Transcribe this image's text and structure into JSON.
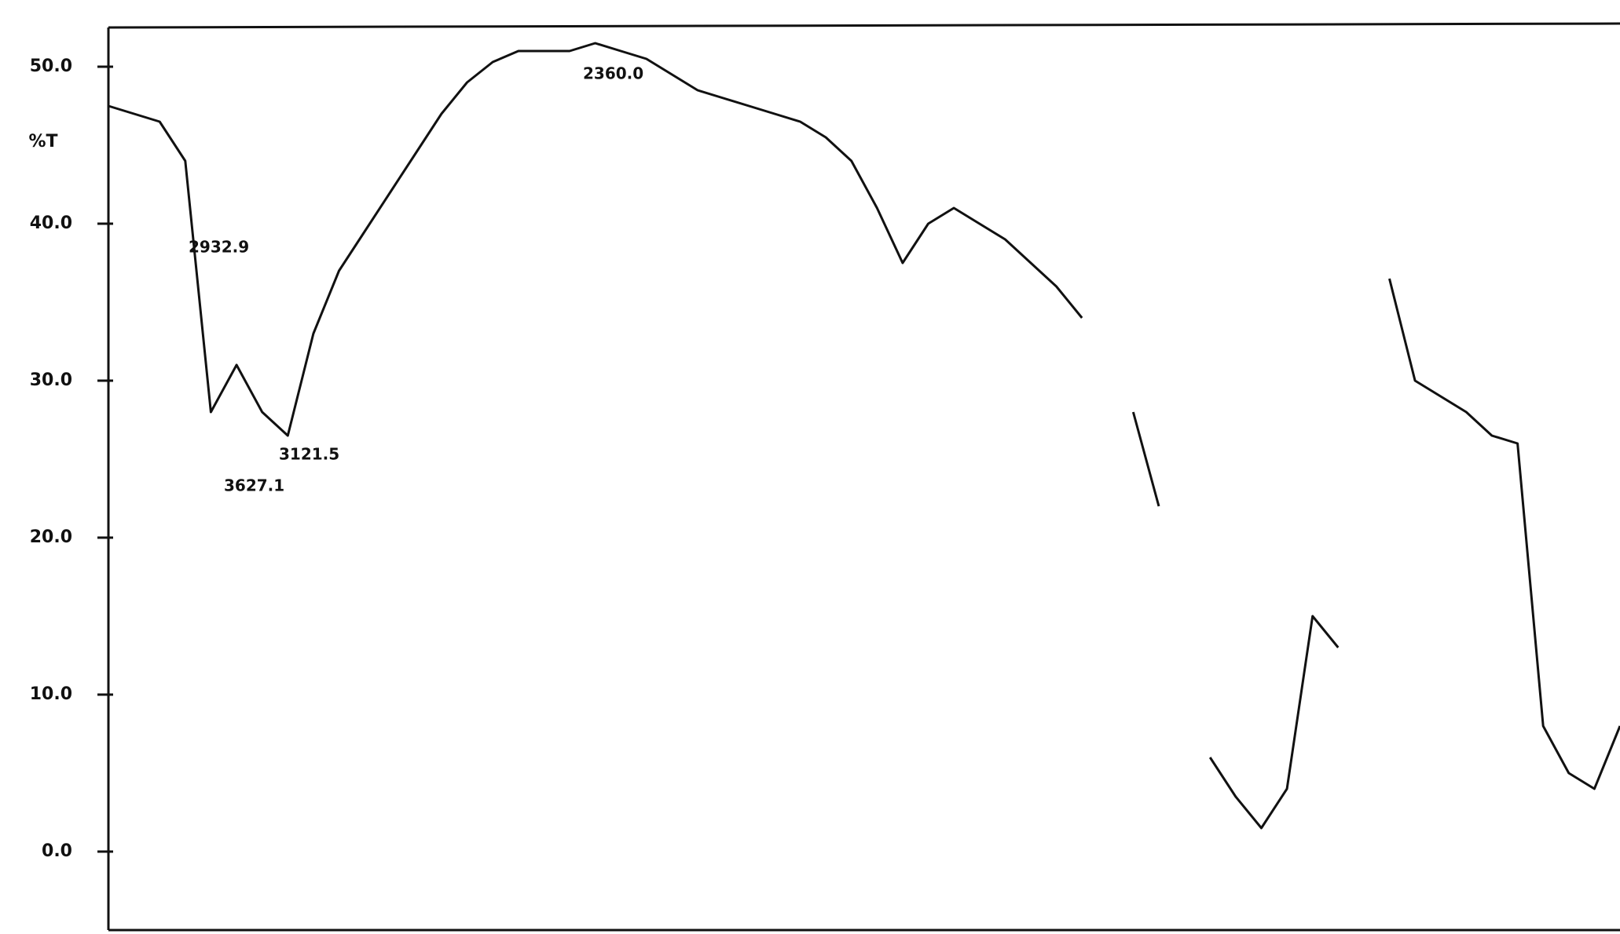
{
  "chart_data": {
    "type": "line",
    "y_label": "%T",
    "values": [
      47.5,
      47,
      46.5,
      44,
      28,
      31,
      28,
      26.5,
      33,
      37,
      39.5,
      42,
      44.5,
      47,
      49,
      50.3,
      51,
      51,
      51,
      51.5,
      51,
      50.5,
      49.5,
      48.5,
      48,
      47.5,
      47,
      46.5,
      45.5,
      44,
      41,
      37.5,
      40,
      41,
      40,
      39,
      37.5,
      36,
      34,
      null,
      28,
      22,
      null,
      6,
      3.5,
      1.5,
      4,
      15,
      13,
      null,
      36.5,
      30,
      29,
      28,
      26.5,
      26,
      8,
      5,
      4,
      8
    ],
    "color": "#111111",
    "ylim": [
      -5,
      52.5
    ],
    "yticks": [
      {
        "value": 0,
        "label": "0.0"
      },
      {
        "value": 10,
        "label": "10.0"
      },
      {
        "value": 20,
        "label": "20.0"
      },
      {
        "value": 30,
        "label": "30.0"
      },
      {
        "value": 40,
        "label": "40.0"
      },
      {
        "value": 50,
        "label": "50.0"
      }
    ],
    "annotations": [
      "2360.0",
      "2932.9",
      "3121.5",
      "3627.1"
    ]
  }
}
